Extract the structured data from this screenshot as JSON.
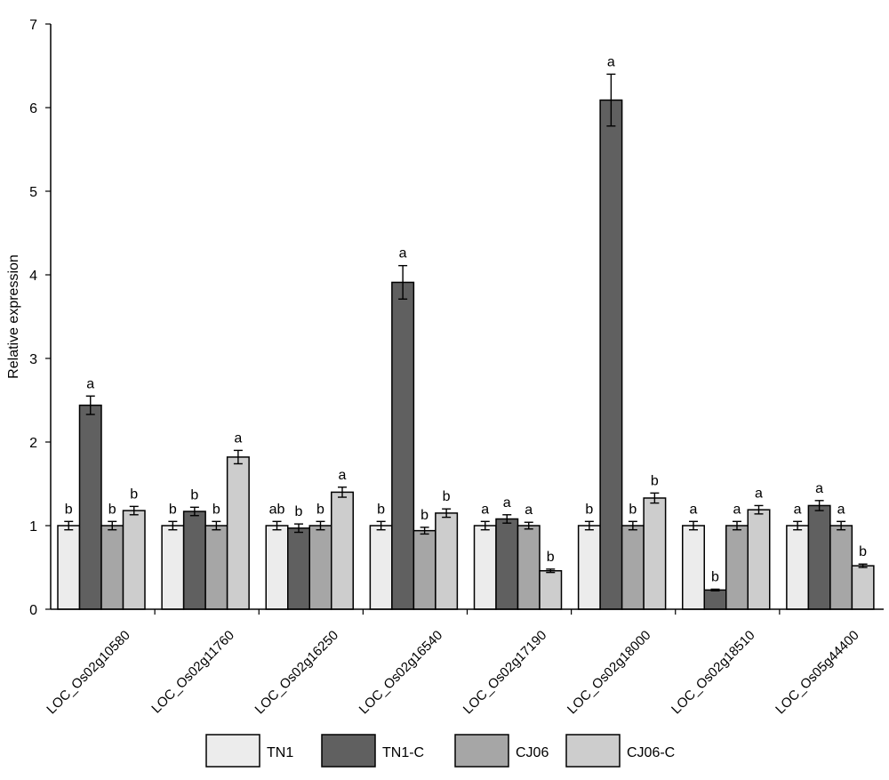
{
  "chart_data": {
    "type": "bar",
    "ylabel": "Relative expression",
    "xlabel": "",
    "ylim": [
      0,
      7
    ],
    "yticks": [
      0,
      1,
      2,
      3,
      4,
      5,
      6,
      7
    ],
    "grid": false,
    "legend_position": "bottom",
    "categories": [
      "LOC_Os02g10580",
      "LOC_Os02g11760",
      "LOC_Os02g16250",
      "LOC_Os02g16540",
      "LOC_Os02g17190",
      "LOC_Os02g18000",
      "LOC_Os02g18510",
      "LOC_Os05g44400"
    ],
    "series": [
      {
        "name": "TN1",
        "color": "#ececec",
        "values": [
          1.0,
          1.0,
          1.0,
          1.0,
          1.0,
          1.0,
          1.0,
          1.0
        ],
        "errors": [
          0.05,
          0.05,
          0.05,
          0.05,
          0.05,
          0.05,
          0.05,
          0.05
        ],
        "letters": [
          "b",
          "b",
          "ab",
          "b",
          "a",
          "b",
          "a",
          "a"
        ]
      },
      {
        "name": "TN1-C",
        "color": "#606060",
        "values": [
          2.44,
          1.17,
          0.97,
          3.91,
          1.08,
          6.09,
          0.23,
          1.24
        ],
        "errors": [
          0.11,
          0.05,
          0.05,
          0.2,
          0.05,
          0.31,
          0.01,
          0.06
        ],
        "letters": [
          "a",
          "b",
          "b",
          "a",
          "a",
          "a",
          "b",
          "a"
        ]
      },
      {
        "name": "CJ06",
        "color": "#a6a6a6",
        "values": [
          1.0,
          1.0,
          1.0,
          0.94,
          1.0,
          1.0,
          1.0,
          1.0
        ],
        "errors": [
          0.05,
          0.05,
          0.05,
          0.04,
          0.04,
          0.05,
          0.05,
          0.05
        ],
        "letters": [
          "b",
          "b",
          "b",
          "b",
          "a",
          "b",
          "a",
          "a"
        ]
      },
      {
        "name": "CJ06-C",
        "color": "#cdcdcd",
        "values": [
          1.18,
          1.82,
          1.4,
          1.15,
          0.46,
          1.33,
          1.19,
          0.52
        ],
        "errors": [
          0.05,
          0.08,
          0.06,
          0.05,
          0.02,
          0.06,
          0.05,
          0.02
        ],
        "letters": [
          "b",
          "a",
          "a",
          "b",
          "b",
          "b",
          "a",
          "b"
        ]
      }
    ]
  }
}
